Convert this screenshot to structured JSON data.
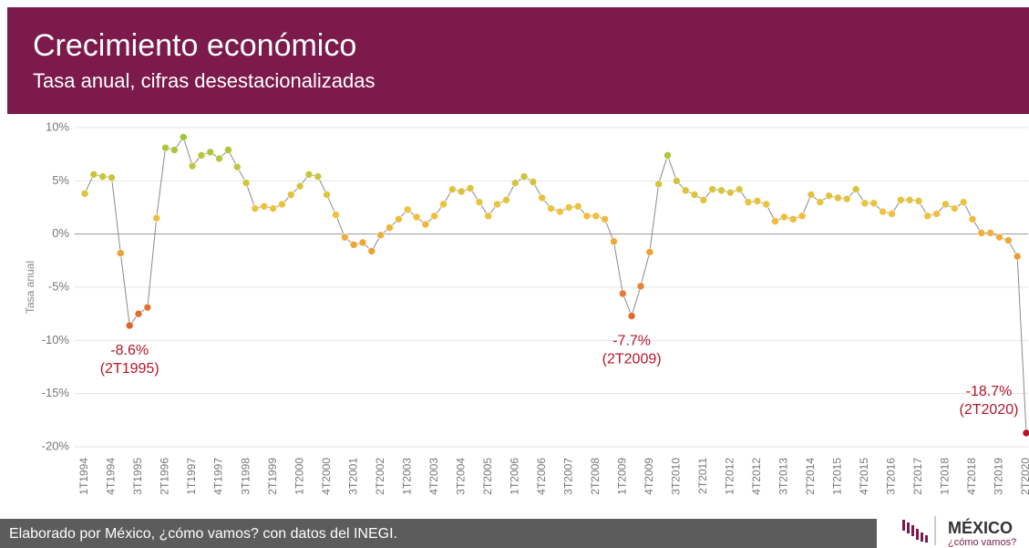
{
  "chart_data": {
    "type": "line",
    "title": "Crecimiento económico",
    "subtitle": "Tasa anual, cifras desestacionalizadas",
    "y_label": "Tasa anual",
    "footer": "Elaborado por México, ¿cómo vamos? con datos del INEGI.",
    "logo": {
      "name": "MÉXICO",
      "tagline": "¿cómo vamos?"
    },
    "categories": [
      "1T1994",
      null,
      null,
      "4T1994",
      null,
      null,
      "3T1995",
      null,
      null,
      "2T1996",
      null,
      null,
      "1T1997",
      null,
      null,
      "4T1997",
      null,
      null,
      "3T1998",
      null,
      null,
      "2T1999",
      null,
      null,
      "1T2000",
      null,
      null,
      "4T2000",
      null,
      null,
      "3T2001",
      null,
      null,
      "2T2002",
      null,
      null,
      "1T2003",
      null,
      null,
      "4T2003",
      null,
      null,
      "3T2004",
      null,
      null,
      "2T2005",
      null,
      null,
      "1T2006",
      null,
      null,
      "4T2006",
      null,
      null,
      "3T2007",
      null,
      null,
      "2T2008",
      null,
      null,
      "1T2009",
      null,
      null,
      "4T2009",
      null,
      null,
      "3T2010",
      null,
      null,
      "2T2011",
      null,
      null,
      "1T2012",
      null,
      null,
      "4T2012",
      null,
      null,
      "3T2013",
      null,
      null,
      "2T2014",
      null,
      null,
      "1T2015",
      null,
      null,
      "4T2015",
      null,
      null,
      "3T2016",
      null,
      null,
      "2T2017",
      null,
      null,
      "1T2018",
      null,
      null,
      "4T2018",
      null,
      null,
      "3T2019",
      null,
      null,
      "2T2020"
    ],
    "values": [
      3.8,
      5.6,
      5.4,
      5.3,
      -1.8,
      -8.6,
      -7.5,
      -6.9,
      1.5,
      8.1,
      7.9,
      9.1,
      6.4,
      7.4,
      7.7,
      7.1,
      7.9,
      6.3,
      4.8,
      2.4,
      2.6,
      2.4,
      2.8,
      3.7,
      4.5,
      5.6,
      5.4,
      3.7,
      1.8,
      -0.3,
      -1.0,
      -0.8,
      -1.6,
      -0.1,
      0.6,
      1.4,
      2.3,
      1.6,
      0.9,
      1.7,
      2.8,
      4.2,
      4.0,
      4.3,
      3.0,
      1.7,
      2.8,
      3.2,
      4.8,
      5.4,
      4.9,
      3.4,
      2.4,
      2.1,
      2.5,
      2.6,
      1.7,
      1.7,
      1.4,
      -0.7,
      -5.6,
      -7.7,
      -4.9,
      -1.7,
      4.7,
      7.4,
      5.0,
      4.1,
      3.7,
      3.2,
      4.2,
      4.1,
      3.9,
      4.2,
      3.0,
      3.1,
      2.8,
      1.2,
      1.6,
      1.4,
      1.7,
      3.7,
      3.0,
      3.6,
      3.4,
      3.3,
      4.2,
      2.9,
      2.9,
      2.1,
      1.9,
      3.2,
      3.2,
      3.1,
      1.7,
      1.9,
      2.8,
      2.4,
      3.0,
      1.4,
      0.1,
      0.1,
      -0.3,
      -0.6,
      -2.1,
      -18.7
    ],
    "line_color": "#8a8a8a",
    "color_scale": [
      "#b5152b",
      "#d9482b",
      "#e8842f",
      "#f2c23c",
      "#9dc83a"
    ],
    "annotations": [
      {
        "index": 5,
        "lines": [
          "-8.6%",
          "(2T1995)"
        ]
      },
      {
        "index": 61,
        "lines": [
          "-7.7%",
          "(2T2009)"
        ]
      },
      {
        "index": 105,
        "lines": [
          "-18.7%",
          "(2T2020)"
        ]
      }
    ],
    "ylim": [
      -20,
      10
    ],
    "yticks": [
      {
        "value": -20,
        "label": "-20%"
      },
      {
        "value": -15,
        "label": "-15%"
      },
      {
        "value": -10,
        "label": "-10%"
      },
      {
        "value": -5,
        "label": "-5%"
      },
      {
        "value": 0,
        "label": "0%"
      },
      {
        "value": 5,
        "label": "5%"
      },
      {
        "value": 10,
        "label": "10%"
      }
    ],
    "grid": true
  }
}
